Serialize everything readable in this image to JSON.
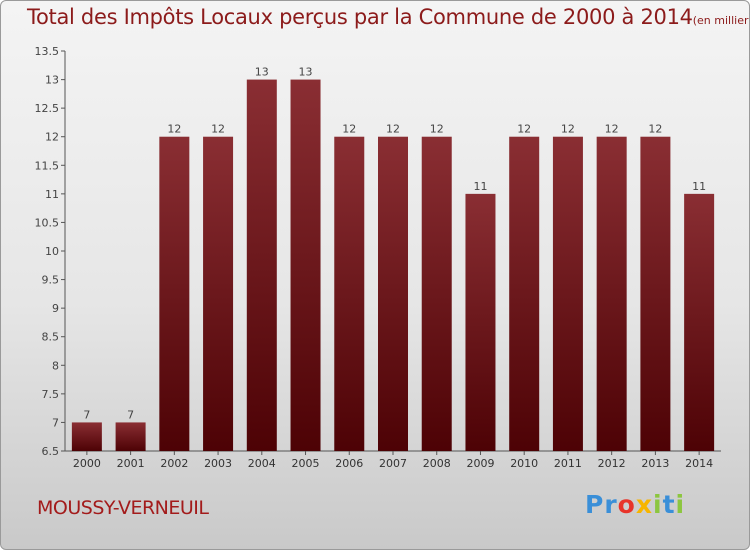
{
  "title": "Total des Impôts Locaux perçus par la Commune de 2000 à 2014",
  "unit": "(en milliers d'€)",
  "commune": "MOUSSY-VERNEUIL",
  "logo": {
    "letters": [
      "P",
      "r",
      "o",
      "x",
      "i",
      "t",
      "i"
    ],
    "colors": [
      "#3a8fd8",
      "#3a8fd8",
      "#e8342a",
      "#f7b500",
      "#8cc63f",
      "#3a8fd8",
      "#8cc63f"
    ]
  },
  "chart_data": {
    "type": "bar",
    "categories": [
      "2000",
      "2001",
      "2002",
      "2003",
      "2004",
      "2005",
      "2006",
      "2007",
      "2008",
      "2009",
      "2010",
      "2011",
      "2012",
      "2013",
      "2014"
    ],
    "values": [
      7,
      7,
      12,
      12,
      13,
      13,
      12,
      12,
      12,
      11,
      12,
      12,
      12,
      12,
      11
    ],
    "labels": [
      "7",
      "7",
      "12",
      "12",
      "13",
      "13",
      "12",
      "12",
      "12",
      "11",
      "12",
      "12",
      "12",
      "12",
      "11"
    ],
    "xlabel": "",
    "ylabel": "",
    "ylim": [
      6.5,
      13.5
    ],
    "yticks": [
      6.5,
      7,
      7.5,
      8,
      8.5,
      9,
      9.5,
      10,
      10.5,
      11,
      11.5,
      12,
      12.5,
      13,
      13.5
    ],
    "ytick_labels": [
      "6.5",
      "7",
      "7.5",
      "8",
      "8.5",
      "9",
      "9.5",
      "10",
      "10.5",
      "11",
      "11.5",
      "12",
      "12.5",
      "13",
      "13.5"
    ],
    "grid": false,
    "bar_color": "#6b0f12"
  }
}
